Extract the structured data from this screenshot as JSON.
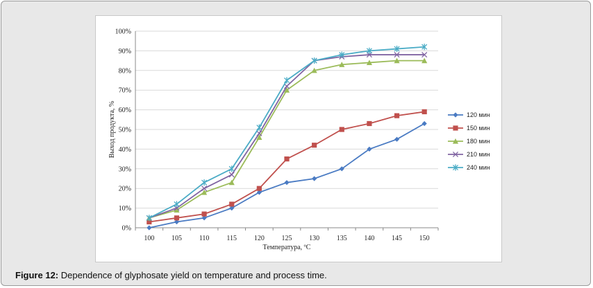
{
  "caption": {
    "label": "Figure 12:",
    "text": " Dependence of glyphosate yield on temperature and process time."
  },
  "chart_data": {
    "type": "line",
    "xlabel": "Температура, ºС",
    "ylabel": "Выход продукта, %",
    "categories": [
      "100",
      "105",
      "110",
      "115",
      "120",
      "125",
      "130",
      "135",
      "140",
      "145",
      "150"
    ],
    "ylim": [
      0,
      100
    ],
    "yticks": [
      "0%",
      "10%",
      "20%",
      "30%",
      "40%",
      "50%",
      "60%",
      "70%",
      "80%",
      "90%",
      "100%"
    ],
    "legend_position": "right",
    "series": [
      {
        "name": "120 мин",
        "color": "#4a7bc3",
        "marker": "diamond",
        "values": [
          0,
          3,
          5,
          10,
          18,
          23,
          25,
          30,
          40,
          45,
          53
        ]
      },
      {
        "name": "150 мин",
        "color": "#c0504d",
        "marker": "square",
        "values": [
          3,
          5,
          7,
          12,
          20,
          35,
          42,
          50,
          53,
          57,
          59
        ]
      },
      {
        "name": "180 мин",
        "color": "#9bbb59",
        "marker": "triangle",
        "values": [
          5,
          9,
          18,
          23,
          46,
          70,
          80,
          83,
          84,
          85,
          85
        ]
      },
      {
        "name": "210 мин",
        "color": "#8064a2",
        "marker": "x",
        "values": [
          5,
          10,
          20,
          27,
          48,
          72,
          85,
          87,
          88,
          88,
          88
        ]
      },
      {
        "name": "240 мин",
        "color": "#4bacc6",
        "marker": "star",
        "values": [
          5,
          12,
          23,
          30,
          51,
          75,
          85,
          88,
          90,
          91,
          92
        ]
      }
    ]
  }
}
